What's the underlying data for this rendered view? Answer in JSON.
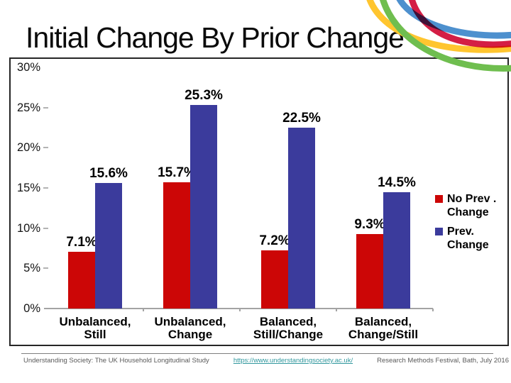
{
  "slide": {
    "title": "Initial Change By Prior Change",
    "footer": {
      "left": "Understanding Society: The UK Household Longitudinal Study",
      "link": "https://www.understandingsociety.ac.uk/",
      "right": "Research Methods Festival, Bath, July 2016"
    },
    "accent_colors": {
      "swoosh_yellow": "#FFC52F",
      "swoosh_green": "#6FBE4F",
      "swoosh_blue": "#4D90CE",
      "swoosh_crimson": "#D41E45"
    }
  },
  "chart_data": {
    "type": "bar",
    "title": "",
    "xlabel": "",
    "ylabel": "",
    "ylim": [
      0,
      30
    ],
    "grid": false,
    "legend_position": "right",
    "categories": [
      {
        "line1": "Unbalanced,",
        "line2": "Still"
      },
      {
        "line1": "Unbalanced,",
        "line2": "Change"
      },
      {
        "line1": "Balanced,",
        "line2": "Still/Change"
      },
      {
        "line1": "Balanced,",
        "line2": "Change/Still"
      }
    ],
    "series": [
      {
        "name": "No Prev . Change",
        "color": "#CC0606",
        "values": [
          7.1,
          15.7,
          7.2,
          9.3
        ],
        "labels": [
          "7.1%",
          "15.7%",
          "7.2%",
          "9.3%"
        ]
      },
      {
        "name": "Prev. Change",
        "color": "#3B3B9C",
        "values": [
          15.6,
          25.3,
          22.5,
          14.5
        ],
        "labels": [
          "15.6%",
          "25.3%",
          "22.5%",
          "14.5%"
        ]
      }
    ],
    "legend": [
      {
        "line1": "No Prev .",
        "line2": "Change",
        "color": "#CC0606"
      },
      {
        "line1": "Prev.",
        "line2": "Change",
        "color": "#3B3B9C"
      }
    ],
    "y_axis": {
      "ticks": [
        {
          "label": "30%",
          "value": 30
        },
        {
          "label": "25%",
          "value": 25
        },
        {
          "label": "20%",
          "value": 20
        },
        {
          "label": "15%",
          "value": 15
        },
        {
          "label": "10%",
          "value": 10
        },
        {
          "label": "5%",
          "value": 5
        },
        {
          "label": "0%",
          "value": 0
        }
      ]
    }
  }
}
